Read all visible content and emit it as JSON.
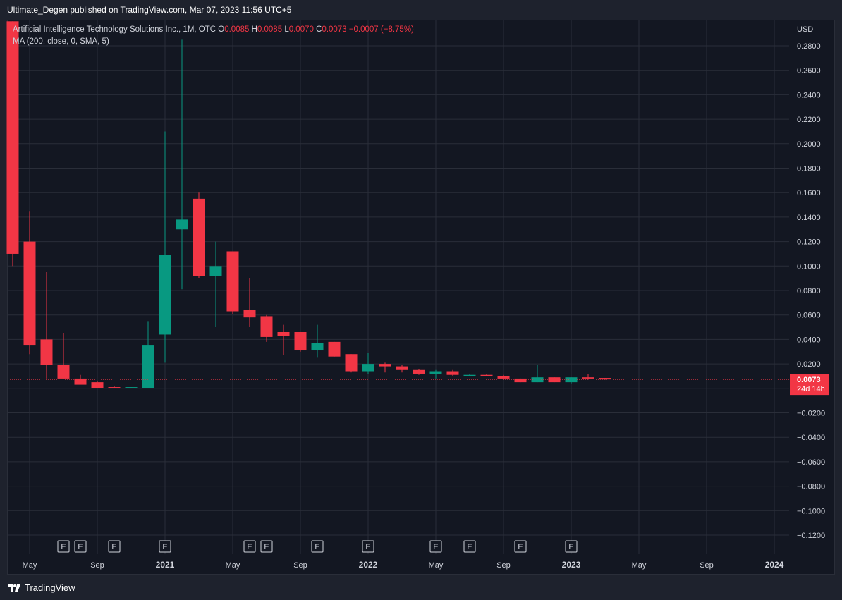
{
  "header": {
    "text": "Ultimate_Degen published on TradingView.com, Mar 07, 2023 11:56 UTC+5"
  },
  "legend": {
    "symbol": "Artificial Intelligence Technology Solutions Inc., 1M, OTC",
    "o_label": "O",
    "o_val": "0.0085",
    "h_label": "H",
    "h_val": "0.0085",
    "l_label": "L",
    "l_val": "0.0070",
    "c_label": "C",
    "c_val": "0.0073",
    "change": "−0.0007 (−8.75%)",
    "ma": "MA (200, close, 0, SMA, 5)"
  },
  "footer": {
    "brand": "TradingView",
    "logo_icon": "tradingview-logo-icon"
  },
  "colors": {
    "up": "#089981",
    "down": "#f23645",
    "grid": "#2a2e39",
    "axis_text": "#d1d4dc",
    "last_price_bg": "#f23645",
    "background": "#131722"
  },
  "chart_data": {
    "type": "candlestick",
    "title": "Artificial Intelligence Technology Solutions Inc., 1M, OTC",
    "currency_label": "USD",
    "ylim": [
      -0.128,
      0.294
    ],
    "y_ticks": [
      0.28,
      0.26,
      0.24,
      0.22,
      0.2,
      0.18,
      0.16,
      0.14,
      0.12,
      0.1,
      0.08,
      0.06,
      0.04,
      0.02,
      -0.02,
      -0.04,
      -0.06,
      -0.08,
      -0.1,
      -0.12
    ],
    "y_tick_labels": [
      "0.2800",
      "0.2600",
      "0.2400",
      "0.2200",
      "0.2000",
      "0.1800",
      "0.1600",
      "0.1400",
      "0.1200",
      "0.1000",
      "0.0800",
      "0.0600",
      "0.0400",
      "0.0200",
      "−0.0200",
      "−0.0400",
      "−0.0600",
      "−0.0800",
      "−0.1000",
      "−0.1200"
    ],
    "x_ticks": [
      {
        "label": "May",
        "month": "2020-05",
        "bold": false
      },
      {
        "label": "Sep",
        "month": "2020-09",
        "bold": false
      },
      {
        "label": "2021",
        "month": "2021-01",
        "bold": true
      },
      {
        "label": "May",
        "month": "2021-05",
        "bold": false
      },
      {
        "label": "Sep",
        "month": "2021-09",
        "bold": false
      },
      {
        "label": "2022",
        "month": "2022-01",
        "bold": true
      },
      {
        "label": "May",
        "month": "2022-05",
        "bold": false
      },
      {
        "label": "Sep",
        "month": "2022-09",
        "bold": false
      },
      {
        "label": "2023",
        "month": "2023-01",
        "bold": true
      },
      {
        "label": "May",
        "month": "2023-05",
        "bold": false
      },
      {
        "label": "Sep",
        "month": "2023-09",
        "bold": false
      },
      {
        "label": "2024",
        "month": "2024-01",
        "bold": true
      }
    ],
    "candles": [
      {
        "date": "2020-04",
        "o": 0.3,
        "h": 0.3,
        "l": 0.1,
        "c": 0.11
      },
      {
        "date": "2020-05",
        "o": 0.12,
        "h": 0.145,
        "l": 0.028,
        "c": 0.035
      },
      {
        "date": "2020-06",
        "o": 0.04,
        "h": 0.095,
        "l": 0.008,
        "c": 0.019
      },
      {
        "date": "2020-07",
        "o": 0.019,
        "h": 0.045,
        "l": 0.008,
        "c": 0.008
      },
      {
        "date": "2020-08",
        "o": 0.008,
        "h": 0.011,
        "l": 0.004,
        "c": 0.003
      },
      {
        "date": "2020-09",
        "o": 0.005,
        "h": 0.006,
        "l": 0.0,
        "c": 0.0
      },
      {
        "date": "2020-10",
        "o": 0.001,
        "h": 0.002,
        "l": 0.0,
        "c": 0.0
      },
      {
        "date": "2020-11",
        "o": 0.0,
        "h": 0.001,
        "l": 0.0,
        "c": 0.001
      },
      {
        "date": "2020-12",
        "o": 0.0,
        "h": 0.055,
        "l": 0.0,
        "c": 0.035
      },
      {
        "date": "2021-01",
        "o": 0.044,
        "h": 0.21,
        "l": 0.021,
        "c": 0.109
      },
      {
        "date": "2021-02",
        "o": 0.13,
        "h": 0.285,
        "l": 0.081,
        "c": 0.138
      },
      {
        "date": "2021-03",
        "o": 0.155,
        "h": 0.16,
        "l": 0.09,
        "c": 0.092
      },
      {
        "date": "2021-04",
        "o": 0.092,
        "h": 0.12,
        "l": 0.05,
        "c": 0.1
      },
      {
        "date": "2021-05",
        "o": 0.112,
        "h": 0.112,
        "l": 0.061,
        "c": 0.063
      },
      {
        "date": "2021-06",
        "o": 0.064,
        "h": 0.09,
        "l": 0.05,
        "c": 0.058
      },
      {
        "date": "2021-07",
        "o": 0.059,
        "h": 0.06,
        "l": 0.038,
        "c": 0.042
      },
      {
        "date": "2021-08",
        "o": 0.046,
        "h": 0.052,
        "l": 0.027,
        "c": 0.043
      },
      {
        "date": "2021-09",
        "o": 0.046,
        "h": 0.046,
        "l": 0.03,
        "c": 0.031
      },
      {
        "date": "2021-10",
        "o": 0.031,
        "h": 0.052,
        "l": 0.025,
        "c": 0.037
      },
      {
        "date": "2021-11",
        "o": 0.038,
        "h": 0.038,
        "l": 0.026,
        "c": 0.026
      },
      {
        "date": "2021-12",
        "o": 0.028,
        "h": 0.028,
        "l": 0.013,
        "c": 0.014
      },
      {
        "date": "2022-01",
        "o": 0.014,
        "h": 0.029,
        "l": 0.012,
        "c": 0.02
      },
      {
        "date": "2022-02",
        "o": 0.02,
        "h": 0.021,
        "l": 0.013,
        "c": 0.018
      },
      {
        "date": "2022-03",
        "o": 0.018,
        "h": 0.019,
        "l": 0.013,
        "c": 0.015
      },
      {
        "date": "2022-04",
        "o": 0.015,
        "h": 0.016,
        "l": 0.011,
        "c": 0.012
      },
      {
        "date": "2022-05",
        "o": 0.012,
        "h": 0.015,
        "l": 0.008,
        "c": 0.014
      },
      {
        "date": "2022-06",
        "o": 0.014,
        "h": 0.015,
        "l": 0.01,
        "c": 0.011
      },
      {
        "date": "2022-07",
        "o": 0.011,
        "h": 0.012,
        "l": 0.01,
        "c": 0.011
      },
      {
        "date": "2022-08",
        "o": 0.011,
        "h": 0.012,
        "l": 0.01,
        "c": 0.01
      },
      {
        "date": "2022-09",
        "o": 0.01,
        "h": 0.011,
        "l": 0.007,
        "c": 0.008
      },
      {
        "date": "2022-10",
        "o": 0.008,
        "h": 0.008,
        "l": 0.005,
        "c": 0.005
      },
      {
        "date": "2022-11",
        "o": 0.005,
        "h": 0.019,
        "l": 0.005,
        "c": 0.009
      },
      {
        "date": "2022-12",
        "o": 0.009,
        "h": 0.009,
        "l": 0.005,
        "c": 0.005
      },
      {
        "date": "2023-01",
        "o": 0.005,
        "h": 0.009,
        "l": 0.004,
        "c": 0.009
      },
      {
        "date": "2023-02",
        "o": 0.009,
        "h": 0.012,
        "l": 0.007,
        "c": 0.008
      },
      {
        "date": "2023-03",
        "o": 0.0085,
        "h": 0.0085,
        "l": 0.007,
        "c": 0.0073
      }
    ],
    "earnings_markers": [
      "2020-07",
      "2020-08",
      "2020-10",
      "2021-01",
      "2021-06",
      "2021-07",
      "2021-10",
      "2022-01",
      "2022-05",
      "2022-07",
      "2022-10",
      "2023-01"
    ],
    "earnings_label": "E",
    "last_price": 0.0073,
    "last_price_label": "0.0073",
    "countdown_label": "24d 14h",
    "grid": true
  }
}
